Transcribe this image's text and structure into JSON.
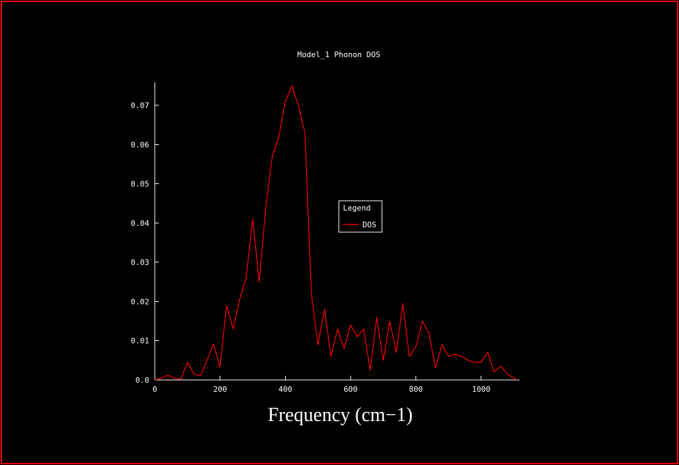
{
  "window": {
    "background": "#000000",
    "border_color": "#ff0000",
    "text_color": "#ffffff"
  },
  "chart_data": {
    "type": "line",
    "title": "Model_1 Phonon DOS",
    "xlabel": "Frequency (cm−1)",
    "ylabel": "",
    "xlim": [
      0,
      1117
    ],
    "ylim": [
      0,
      0.0759
    ],
    "x_ticks": [
      0,
      200,
      400,
      600,
      800,
      1000
    ],
    "x_tick_labels": [
      "0",
      "200",
      "400",
      "600",
      "800",
      "1000"
    ],
    "y_ticks": [
      0.0,
      0.01,
      0.02,
      0.03,
      0.04,
      0.05,
      0.06,
      0.07
    ],
    "y_tick_labels": [
      "0.0",
      "0.01",
      "0.02",
      "0.03",
      "0.04",
      "0.05",
      "0.06",
      "0.07"
    ],
    "grid": false,
    "axis_color": "#ffffff",
    "legend": {
      "title": "Legend",
      "position": "center",
      "entries": [
        {
          "label": "DOS",
          "color": "#ff0000"
        }
      ]
    },
    "series": [
      {
        "name": "DOS",
        "color": "#ff0000",
        "x": [
          0,
          20,
          40,
          60,
          80,
          100,
          120,
          140,
          160,
          180,
          200,
          220,
          240,
          260,
          280,
          300,
          320,
          340,
          360,
          380,
          400,
          420,
          440,
          460,
          480,
          500,
          520,
          540,
          560,
          580,
          600,
          620,
          640,
          660,
          680,
          700,
          720,
          740,
          760,
          780,
          800,
          820,
          840,
          860,
          880,
          900,
          920,
          940,
          960,
          980,
          1000,
          1020,
          1040,
          1060,
          1080,
          1100,
          1110
        ],
        "y": [
          0.0,
          0.0005,
          0.0012,
          0.0004,
          0.0002,
          0.0045,
          0.0015,
          0.001,
          0.005,
          0.0092,
          0.0032,
          0.019,
          0.013,
          0.0205,
          0.026,
          0.041,
          0.025,
          0.044,
          0.057,
          0.062,
          0.071,
          0.075,
          0.07,
          0.063,
          0.022,
          0.009,
          0.018,
          0.006,
          0.013,
          0.008,
          0.014,
          0.011,
          0.013,
          0.0025,
          0.016,
          0.005,
          0.015,
          0.007,
          0.0195,
          0.006,
          0.0085,
          0.015,
          0.012,
          0.003,
          0.009,
          0.006,
          0.0065,
          0.006,
          0.005,
          0.0045,
          0.0045,
          0.007,
          0.002,
          0.0035,
          0.0015,
          0.0005,
          0.0
        ]
      }
    ]
  }
}
